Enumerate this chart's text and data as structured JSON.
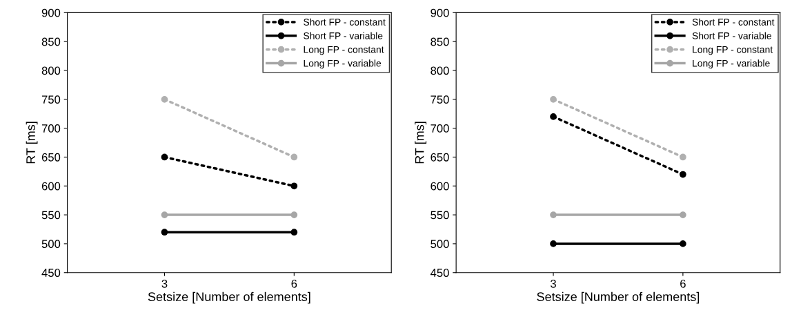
{
  "chart_data": [
    {
      "type": "line",
      "xlabel": "Setsize [Number of elements]",
      "ylabel": "RT [ms]",
      "categories": [
        "3",
        "6"
      ],
      "ylim": [
        450,
        900
      ],
      "yticks": [
        450,
        500,
        550,
        600,
        650,
        700,
        750,
        800,
        850,
        900
      ],
      "grid": false,
      "legend": "top right",
      "marker": "circle",
      "series": [
        {
          "name": "Short FP - constant",
          "color": "#000000",
          "line_style": "dotted",
          "values": [
            650,
            600
          ]
        },
        {
          "name": "Short FP - variable",
          "color": "#000000",
          "line_style": "solid",
          "values": [
            520,
            520
          ]
        },
        {
          "name": "Long FP - constant",
          "color": "#b0b0b0",
          "line_style": "dotted",
          "values": [
            750,
            650
          ]
        },
        {
          "name": "Long FP - variable",
          "color": "#a6a6a6",
          "line_style": "solid",
          "values": [
            550,
            550
          ]
        }
      ]
    },
    {
      "type": "line",
      "xlabel": "Setsize [Number of elements]",
      "ylabel": "RT [ms]",
      "categories": [
        "3",
        "6"
      ],
      "ylim": [
        450,
        900
      ],
      "yticks": [
        450,
        500,
        550,
        600,
        650,
        700,
        750,
        800,
        850,
        900
      ],
      "grid": false,
      "legend": "top right",
      "marker": "circle",
      "series": [
        {
          "name": "Short FP - constant",
          "color": "#000000",
          "line_style": "dotted",
          "values": [
            720,
            620
          ]
        },
        {
          "name": "Short FP - variable",
          "color": "#000000",
          "line_style": "solid",
          "values": [
            500,
            500
          ]
        },
        {
          "name": "Long FP - constant",
          "color": "#b0b0b0",
          "line_style": "dotted",
          "values": [
            750,
            650
          ]
        },
        {
          "name": "Long FP - variable",
          "color": "#a6a6a6",
          "line_style": "solid",
          "values": [
            550,
            550
          ]
        }
      ]
    }
  ]
}
